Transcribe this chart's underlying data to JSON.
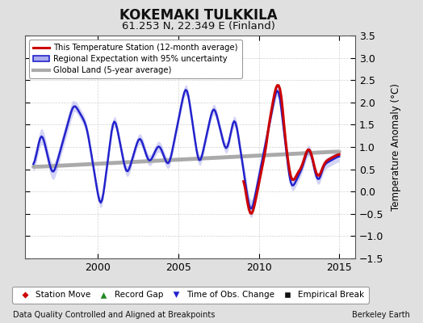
{
  "title": "KOKEMAKI TULKKILA",
  "subtitle": "61.253 N, 22.349 E (Finland)",
  "ylabel": "Temperature Anomaly (°C)",
  "xlabel_bottom_left": "Data Quality Controlled and Aligned at Breakpoints",
  "xlabel_bottom_right": "Berkeley Earth",
  "ylim": [
    -1.5,
    3.5
  ],
  "xlim": [
    1995.5,
    2016.0
  ],
  "yticks": [
    -1.5,
    -1.0,
    -0.5,
    0,
    0.5,
    1.0,
    1.5,
    2.0,
    2.5,
    3.0,
    3.5
  ],
  "xticks": [
    2000,
    2005,
    2010,
    2015
  ],
  "bg_color": "#e0e0e0",
  "plot_bg_color": "#ffffff",
  "red_line_color": "#cc0000",
  "blue_line_color": "#2222cc",
  "blue_band_color": "#aaaaee",
  "gray_line_color": "#aaaaaa",
  "grid_color": "#cccccc",
  "legend_station": "This Temperature Station (12-month average)",
  "legend_regional": "Regional Expectation with 95% uncertainty",
  "legend_global": "Global Land (5-year average)",
  "bottom_labels": [
    "Station Move",
    "Record Gap",
    "Time of Obs. Change",
    "Empirical Break"
  ],
  "bottom_colors": [
    "#cc0000",
    "#228822",
    "#2222cc",
    "#111111"
  ],
  "bottom_markers": [
    "D",
    "^",
    "v",
    "s"
  ]
}
